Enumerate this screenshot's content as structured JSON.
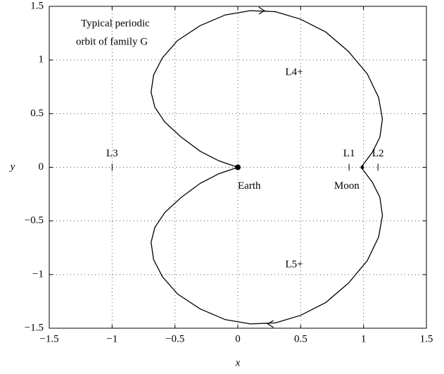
{
  "chart_data": {
    "type": "line",
    "xlabel": "x",
    "ylabel": "y",
    "annotations": [
      "Typical periodic",
      "orbit of family G",
      "L4+",
      "L5+"
    ],
    "x": [
      0,
      -0.15,
      -0.3,
      -0.45,
      -0.58,
      -0.66,
      -0.69,
      -0.67,
      -0.6,
      -0.48,
      -0.3,
      -0.1,
      0.1,
      0.3,
      0.5,
      0.7,
      0.88,
      1.03,
      1.12,
      1.15,
      1.13,
      1.07,
      1.0,
      0.98,
      1.0,
      1.07,
      1.13,
      1.15,
      1.12,
      1.03,
      0.88,
      0.7,
      0.5,
      0.3,
      0.1,
      -0.1,
      -0.3,
      -0.48,
      -0.6,
      -0.67,
      -0.69,
      -0.66,
      -0.58,
      -0.45,
      -0.3,
      -0.15,
      0
    ],
    "series": [
      {
        "color": "#000000",
        "values": [
          0,
          0.06,
          0.15,
          0.28,
          0.42,
          0.56,
          0.7,
          0.86,
          1.02,
          1.18,
          1.32,
          1.42,
          1.46,
          1.45,
          1.38,
          1.26,
          1.08,
          0.87,
          0.65,
          0.45,
          0.28,
          0.14,
          0.03,
          0,
          -0.03,
          -0.14,
          -0.28,
          -0.45,
          -0.65,
          -0.87,
          -1.08,
          -1.26,
          -1.38,
          -1.45,
          -1.46,
          -1.42,
          -1.32,
          -1.18,
          -1.02,
          -0.86,
          -0.7,
          -0.56,
          -0.42,
          -0.28,
          -0.15,
          -0.06,
          0
        ]
      }
    ],
    "points": [
      {
        "name": "L3",
        "x": -1.0,
        "y": 0
      },
      {
        "name": "L1",
        "x": 0.885,
        "y": 0
      },
      {
        "name": "L2",
        "x": 1.115,
        "y": 0
      },
      {
        "name": "Earth",
        "x": 0,
        "y": 0
      },
      {
        "name": "Moon",
        "x": 0.99,
        "y": 0
      }
    ],
    "xlim": [
      -1.5,
      1.5
    ],
    "ylim": [
      -1.5,
      1.5
    ],
    "xticks": [
      {
        "value": -1.5,
        "label": "−1.5"
      },
      {
        "value": -1,
        "label": "−1"
      },
      {
        "value": -0.5,
        "label": "−0.5"
      },
      0,
      0.5,
      1,
      1.5
    ],
    "yticks": [
      {
        "value": -1.5,
        "label": "−1.5"
      },
      {
        "value": -1,
        "label": "−1"
      },
      {
        "value": -0.5,
        "label": "−0.5"
      },
      0,
      0.5,
      1,
      1.5
    ],
    "grid": true
  }
}
